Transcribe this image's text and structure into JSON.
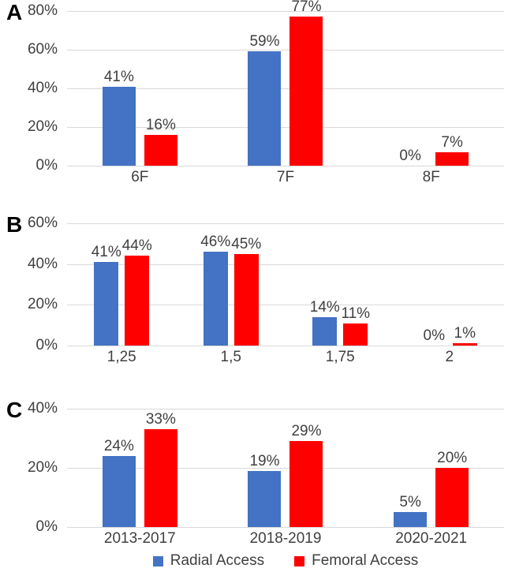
{
  "legend": {
    "items": [
      {
        "label": "Radial Access",
        "color": "#4472C4"
      },
      {
        "label": "Femoral Access",
        "color": "#FF0000"
      }
    ]
  },
  "colors": {
    "radial_blue": "#4472C4",
    "femoral_red": "#FF0000",
    "gridline": "#D9D9D9",
    "text": "#404040"
  },
  "chart_data": [
    {
      "type": "bar",
      "panel_label": "A",
      "categories": [
        "6F",
        "7F",
        "8F"
      ],
      "series": [
        {
          "name": "Radial Access",
          "color": "#4472C4",
          "values": [
            41,
            59,
            0
          ]
        },
        {
          "name": "Femoral Access",
          "color": "#FF0000",
          "values": [
            16,
            77,
            7
          ]
        }
      ],
      "value_suffix": "%",
      "ytick_labels": [
        "80%",
        "60%",
        "40%",
        "20%",
        "0%"
      ],
      "ylim": [
        0,
        80
      ],
      "ytick_step": 20,
      "grid": true,
      "legend_position": "none",
      "title": "",
      "xlabel": "",
      "ylabel": ""
    },
    {
      "type": "bar",
      "panel_label": "B",
      "categories": [
        "1,25",
        "1,5",
        "1,75",
        "2"
      ],
      "series": [
        {
          "name": "Radial Access",
          "color": "#4472C4",
          "values": [
            41,
            46,
            14,
            0
          ]
        },
        {
          "name": "Femoral Access",
          "color": "#FF0000",
          "values": [
            44,
            45,
            11,
            1
          ]
        }
      ],
      "value_suffix": "%",
      "ytick_labels": [
        "60%",
        "40%",
        "20%",
        "0%"
      ],
      "ylim": [
        0,
        60
      ],
      "ytick_step": 20,
      "grid": true,
      "legend_position": "none",
      "title": "",
      "xlabel": "",
      "ylabel": ""
    },
    {
      "type": "bar",
      "panel_label": "C",
      "categories": [
        "2013-2017",
        "2018-2019",
        "2020-2021"
      ],
      "series": [
        {
          "name": "Radial Access",
          "color": "#4472C4",
          "values": [
            24,
            19,
            5
          ]
        },
        {
          "name": "Femoral Access",
          "color": "#FF0000",
          "values": [
            33,
            29,
            20
          ]
        }
      ],
      "value_suffix": "%",
      "ytick_labels": [
        "40%",
        "20%",
        "0%"
      ],
      "ylim": [
        0,
        40
      ],
      "ytick_step": 20,
      "grid": true,
      "legend_position": "bottom",
      "title": "",
      "xlabel": "",
      "ylabel": ""
    }
  ]
}
